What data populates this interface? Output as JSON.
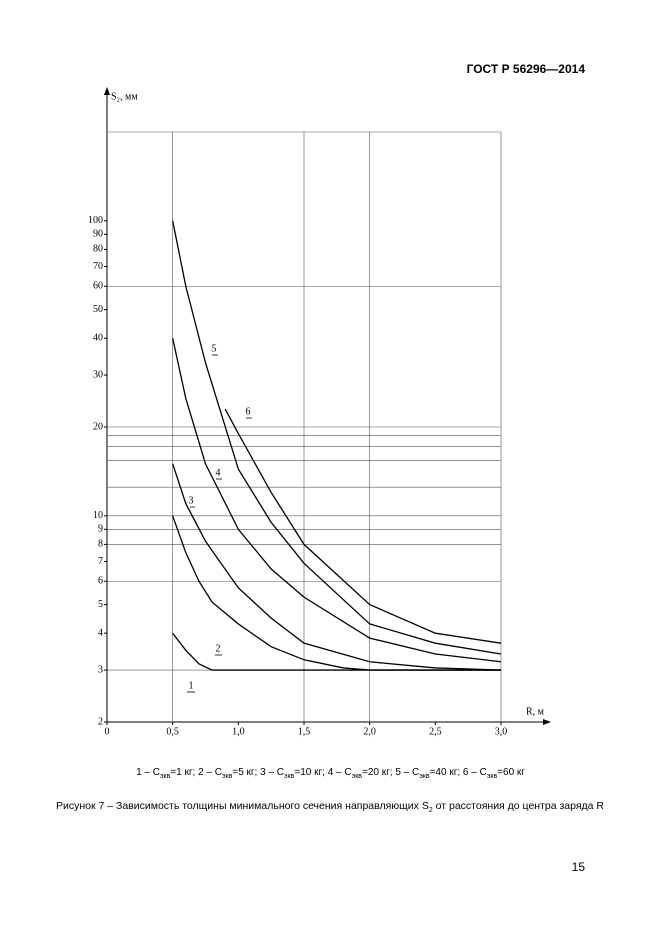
{
  "header": {
    "code": "ГОСТ Р 56296—2014"
  },
  "chart_data": {
    "type": "line",
    "ylabel": "S₂, мм",
    "xlabel": "R, м",
    "log_y": true,
    "xlim": [
      0,
      3
    ],
    "ylim": [
      2,
      200
    ],
    "xticks": [
      0,
      {
        "value": 0.5,
        "label": "0,5"
      },
      {
        "value": 1.0,
        "label": "1,0"
      },
      {
        "value": 1.5,
        "label": "1,5"
      },
      {
        "value": 2.0,
        "label": "2,0"
      },
      {
        "value": 2.5,
        "label": "2,5"
      },
      {
        "value": 3.0,
        "label": "3,0"
      }
    ],
    "yticks": [
      2,
      3,
      4,
      5,
      6,
      7,
      8,
      9,
      10,
      20,
      30,
      40,
      50,
      60,
      70,
      80,
      90,
      100
    ],
    "grid_x": [
      0.5,
      1.5,
      2.0,
      3.0
    ],
    "grid_y": [
      3,
      6,
      8,
      9,
      10,
      12.5,
      15.4,
      17.2,
      18.7,
      20,
      60,
      200
    ],
    "color": "#000000",
    "series": [
      {
        "name": "1",
        "x": [
          0.5,
          0.6,
          0.7,
          0.8,
          3.0
        ],
        "values": [
          4,
          3.5,
          3.15,
          3.0,
          3.0
        ]
      },
      {
        "name": "2",
        "x": [
          0.5,
          0.6,
          0.7,
          0.8,
          1.0,
          1.25,
          1.5,
          1.8,
          2.0,
          3.0
        ],
        "values": [
          10,
          7.5,
          6.0,
          5.1,
          4.3,
          3.6,
          3.25,
          3.05,
          3.0,
          3.0
        ]
      },
      {
        "name": "3",
        "x": [
          0.5,
          0.6,
          0.75,
          1.0,
          1.25,
          1.5,
          2.0,
          2.5,
          3.0
        ],
        "values": [
          15,
          11,
          8.2,
          5.7,
          4.5,
          3.7,
          3.2,
          3.05,
          3.0
        ]
      },
      {
        "name": "4",
        "x": [
          0.5,
          0.6,
          0.75,
          1.0,
          1.25,
          1.5,
          2.0,
          2.5,
          3.0
        ],
        "values": [
          40,
          25,
          15,
          9.0,
          6.6,
          5.3,
          3.85,
          3.4,
          3.2
        ]
      },
      {
        "name": "5",
        "x": [
          0.5,
          0.6,
          0.75,
          1.0,
          1.25,
          1.5,
          2.0,
          2.5,
          3.0
        ],
        "values": [
          100,
          60,
          33,
          14.4,
          9.5,
          6.9,
          4.3,
          3.7,
          3.4
        ]
      },
      {
        "name": "6",
        "x": [
          0.9,
          1.0,
          1.25,
          1.5,
          2.0,
          2.5,
          3.0
        ],
        "values": [
          23,
          19,
          12,
          8.0,
          5.0,
          4.0,
          3.7
        ]
      }
    ]
  },
  "legend": [
    {
      "lead": "1 – C",
      "sub": "экв",
      "rest": "=1 кг;"
    },
    {
      "lead": "2 – C",
      "sub": "экв",
      "rest": "=5 кг;"
    },
    {
      "lead": "3 – C",
      "sub": "экв",
      "rest": "=10 кг;"
    },
    {
      "lead": "4 – C",
      "sub": "экв",
      "rest": "=20 кг;"
    },
    {
      "lead": "5 – C",
      "sub": "экв",
      "rest": "=40 кг;"
    },
    {
      "lead": "6 – C",
      "sub": "экв",
      "rest": "=60 кг"
    }
  ],
  "caption": {
    "before": "Рисунок 7 – Зависимость толщины минимального сечения направляющих S",
    "sub": "2",
    "after": " от расстояния до центра заряда R"
  },
  "page_number": "15"
}
